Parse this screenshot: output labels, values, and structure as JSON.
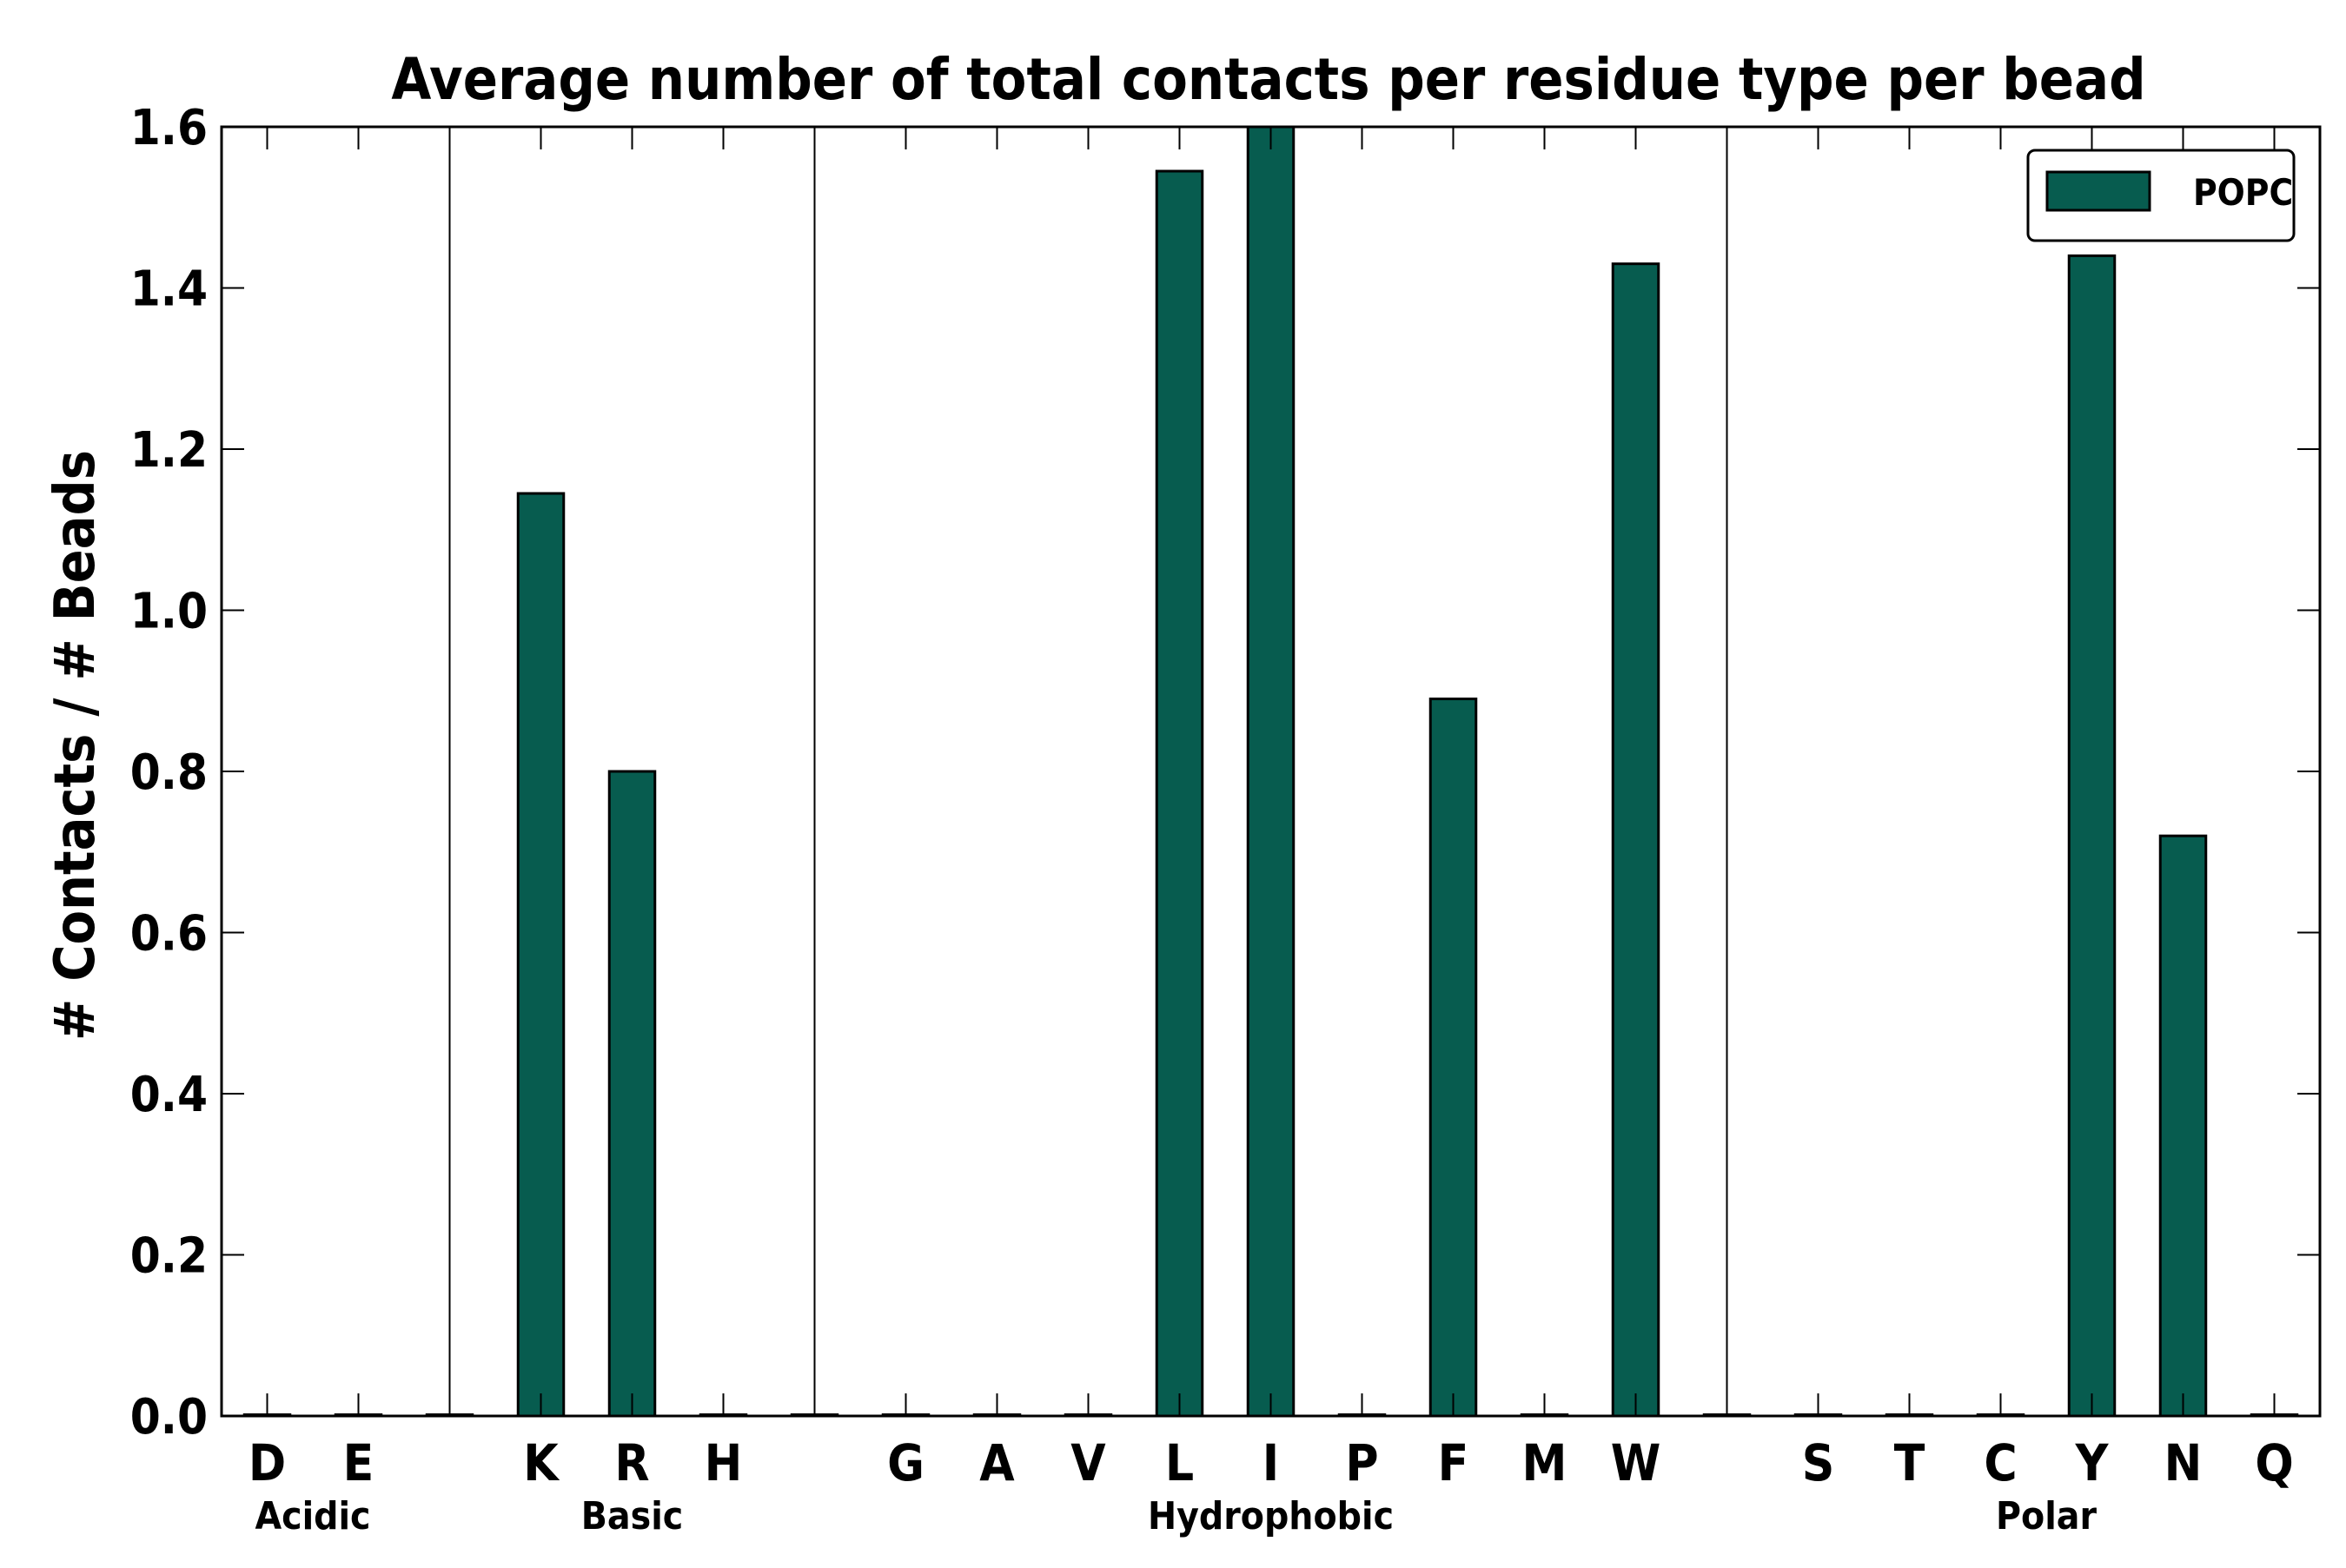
{
  "chart_data": {
    "type": "bar",
    "title": "Average number of total contacts per residue type per bead",
    "xlabel": "",
    "ylabel": "# Contacts / # Beads",
    "ylim": [
      0.0,
      1.6
    ],
    "yticks": [
      "0.0",
      "0.2",
      "0.4",
      "0.6",
      "0.8",
      "1.0",
      "1.2",
      "1.4",
      "1.6"
    ],
    "grid": false,
    "legend_position": "top-right",
    "bar_color": "#075c4f",
    "slots": [
      {
        "label": "D",
        "value": 0.0
      },
      {
        "label": "E",
        "value": 0.0
      },
      {
        "label": "",
        "value": 0.0
      },
      {
        "label": "K",
        "value": 1.145
      },
      {
        "label": "R",
        "value": 0.8
      },
      {
        "label": "H",
        "value": 0.0
      },
      {
        "label": "",
        "value": 0.0
      },
      {
        "label": "G",
        "value": 0.0
      },
      {
        "label": "A",
        "value": 0.0
      },
      {
        "label": "V",
        "value": 0.0
      },
      {
        "label": "L",
        "value": 1.545
      },
      {
        "label": "I",
        "value": 1.6
      },
      {
        "label": "P",
        "value": 0.0
      },
      {
        "label": "F",
        "value": 0.89
      },
      {
        "label": "M",
        "value": 0.0
      },
      {
        "label": "W",
        "value": 1.43
      },
      {
        "label": "",
        "value": 0.0
      },
      {
        "label": "S",
        "value": 0.0
      },
      {
        "label": "T",
        "value": 0.0
      },
      {
        "label": "C",
        "value": 0.0
      },
      {
        "label": "Y",
        "value": 1.44
      },
      {
        "label": "N",
        "value": 0.72
      },
      {
        "label": "Q",
        "value": 0.0
      }
    ],
    "groups": [
      {
        "label": "Acidic",
        "start": 0,
        "end": 1
      },
      {
        "label": "Basic",
        "start": 3,
        "end": 5
      },
      {
        "label": "Hydrophobic",
        "start": 7,
        "end": 15
      },
      {
        "label": "Polar",
        "start": 17,
        "end": 22
      }
    ],
    "separators_after_slot": [
      2,
      6,
      16
    ],
    "series": [
      {
        "name": "POPC",
        "color": "#075c4f"
      }
    ]
  }
}
